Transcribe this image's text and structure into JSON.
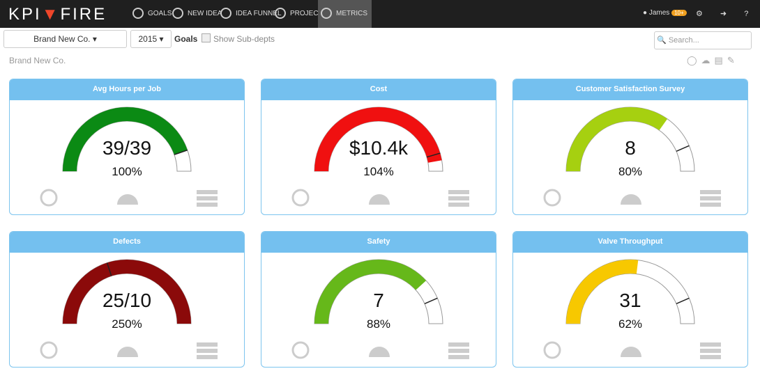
{
  "nav": {
    "logo_left": "KPI",
    "logo_right": "FIRE",
    "items": [
      "GOALS",
      "NEW IDEA",
      "IDEA FUNNEL",
      "PROJECTS",
      "METRICS"
    ],
    "active": 4,
    "user": "James",
    "badge": "10+"
  },
  "toolbar": {
    "company": "Brand New Co.",
    "year": "2015",
    "goals": "Goals",
    "subdepts": "Show Sub-depts",
    "search": "Search..."
  },
  "breadcrumb": "Brand New Co.",
  "gauges": [
    {
      "title": "Avg Hours per Job",
      "value": "39/39",
      "percent_label": "100%",
      "percent": 100,
      "target": 100,
      "scale_max": 112,
      "color": "#0b8a14"
    },
    {
      "title": "Cost",
      "value": "$10.4k",
      "percent_label": "104%",
      "percent": 104,
      "target": 100,
      "scale_max": 110,
      "color": "#f01010"
    },
    {
      "title": "Customer Satisfaction Survey",
      "value": "8",
      "percent_label": "80%",
      "percent": 80,
      "target": 100,
      "scale_max": 115,
      "color": "#a6d010"
    },
    {
      "title": "Defects",
      "value": "25/10",
      "percent_label": "250%",
      "percent": 250,
      "target": 100,
      "scale_max": 250,
      "color": "#8b0a0a"
    },
    {
      "title": "Safety",
      "value": "7",
      "percent_label": "88%",
      "percent": 88,
      "target": 100,
      "scale_max": 115,
      "color": "#66b81a"
    },
    {
      "title": "Valve Throughput",
      "value": "31",
      "percent_label": "62%",
      "percent": 62,
      "target": 100,
      "scale_max": 115,
      "color": "#f7c800"
    }
  ]
}
